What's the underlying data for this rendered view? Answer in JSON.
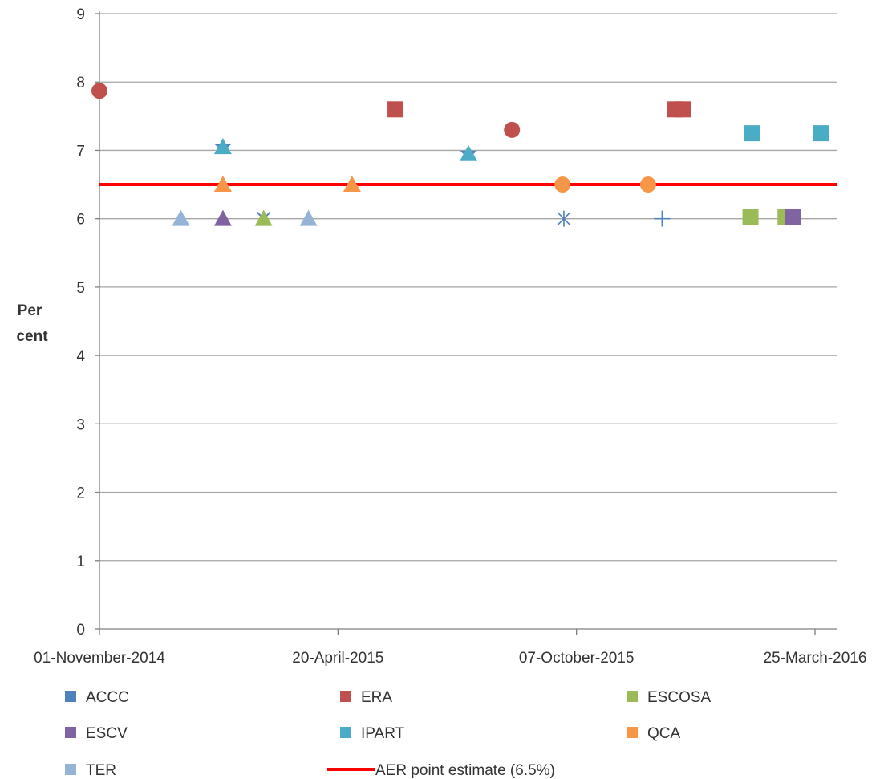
{
  "chart_data": {
    "type": "scatter",
    "title": "",
    "xlabel": "",
    "ylabel_line1": "Per",
    "ylabel_line2": "cent",
    "ylim": [
      0,
      9
    ],
    "yticks": [
      "0",
      "1",
      "2",
      "3",
      "4",
      "5",
      "6",
      "7",
      "8",
      "9"
    ],
    "xlim": [
      "2014-11-01",
      "2016-04-10"
    ],
    "xticks": [
      {
        "date": "2014-11-01",
        "label": "01-November-2014"
      },
      {
        "date": "2015-04-20",
        "label": "20-April-2015"
      },
      {
        "date": "2015-10-07",
        "label": "07-October-2015"
      },
      {
        "date": "2016-03-25",
        "label": "25-March-2016"
      }
    ],
    "grid": "horizontal",
    "legend_position": "bottom",
    "reference_line": {
      "name": "AER point estimate (6.5%)",
      "y": 6.5,
      "x_start": "2014-11-01",
      "x_end": "2016-04-10",
      "color": "#ff0000"
    },
    "series": [
      {
        "name": "ACCC",
        "color": "#4f81bd",
        "points": [
          {
            "x": "2015-01-28",
            "y": 7.05,
            "marker": "star"
          },
          {
            "x": "2015-02-26",
            "y": 6.0,
            "marker": "x"
          },
          {
            "x": "2015-07-22",
            "y": 6.95,
            "marker": "star"
          },
          {
            "x": "2015-09-28",
            "y": 6.0,
            "marker": "asterisk"
          },
          {
            "x": "2015-12-07",
            "y": 6.0,
            "marker": "plus"
          },
          {
            "x": "2016-02-09",
            "y": 7.25,
            "marker": "star"
          }
        ]
      },
      {
        "name": "ERA",
        "color": "#c0504d",
        "points": [
          {
            "x": "2014-11-01",
            "y": 7.87,
            "marker": "circle"
          },
          {
            "x": "2015-05-31",
            "y": 7.6,
            "marker": "square"
          },
          {
            "x": "2015-08-22",
            "y": 7.3,
            "marker": "circle"
          },
          {
            "x": "2015-12-16",
            "y": 7.6,
            "marker": "square"
          },
          {
            "x": "2015-12-22",
            "y": 7.6,
            "marker": "square"
          }
        ]
      },
      {
        "name": "ESCOSA",
        "color": "#9bbb59",
        "points": [
          {
            "x": "2015-02-26",
            "y": 6.0,
            "marker": "triangle"
          },
          {
            "x": "2016-02-08",
            "y": 6.02,
            "marker": "square"
          },
          {
            "x": "2016-03-04",
            "y": 6.02,
            "marker": "square"
          }
        ]
      },
      {
        "name": "ESCV",
        "color": "#8064a2",
        "points": [
          {
            "x": "2015-01-28",
            "y": 6.0,
            "marker": "triangle"
          },
          {
            "x": "2016-03-09",
            "y": 6.02,
            "marker": "square"
          }
        ]
      },
      {
        "name": "IPART",
        "color": "#4bacc6",
        "points": [
          {
            "x": "2015-01-28",
            "y": 7.05,
            "marker": "triangle"
          },
          {
            "x": "2015-07-22",
            "y": 6.95,
            "marker": "triangle"
          },
          {
            "x": "2016-02-09",
            "y": 7.25,
            "marker": "square"
          },
          {
            "x": "2016-03-29",
            "y": 7.25,
            "marker": "square"
          }
        ]
      },
      {
        "name": "QCA",
        "color": "#f79646",
        "points": [
          {
            "x": "2015-01-28",
            "y": 6.5,
            "marker": "triangle"
          },
          {
            "x": "2015-04-30",
            "y": 6.5,
            "marker": "triangle"
          },
          {
            "x": "2015-09-27",
            "y": 6.5,
            "marker": "circle"
          },
          {
            "x": "2015-11-27",
            "y": 6.5,
            "marker": "circle"
          }
        ]
      },
      {
        "name": "TER",
        "color": "#95b3d7",
        "points": [
          {
            "x": "2014-12-29",
            "y": 6.0,
            "marker": "triangle"
          },
          {
            "x": "2015-03-30",
            "y": 6.0,
            "marker": "triangle"
          }
        ]
      }
    ]
  }
}
